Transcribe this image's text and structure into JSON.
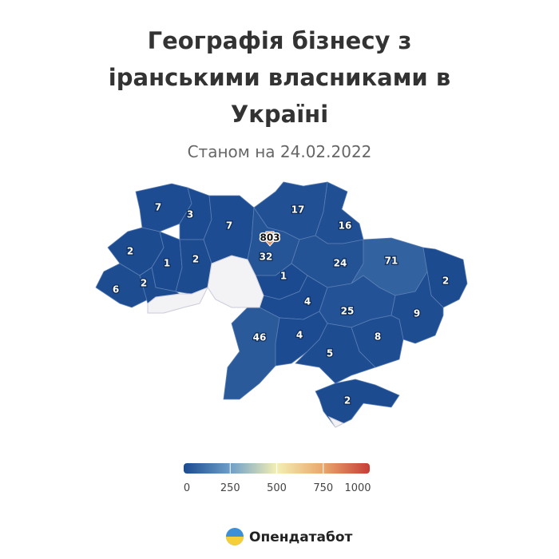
{
  "title": "Географія бізнесу з іранськими власниками в Україні",
  "subtitle": "Станом на 24.02.2022",
  "map": {
    "values": [
      7,
      3,
      7,
      17,
      16,
      803,
      32,
      2,
      1,
      2,
      24,
      71,
      2,
      6,
      2,
      1,
      4,
      25,
      9,
      46,
      4,
      8,
      5,
      2
    ]
  },
  "color_scale": {
    "range": [
      0,
      1000
    ],
    "ticks": [
      0,
      250,
      500,
      750,
      1000
    ],
    "colors": [
      "#1b4a90",
      "#6d9fc9",
      "#f3efb2",
      "#e9a76c",
      "#c63d36"
    ]
  },
  "logo": {
    "text": "Опендатабот"
  }
}
